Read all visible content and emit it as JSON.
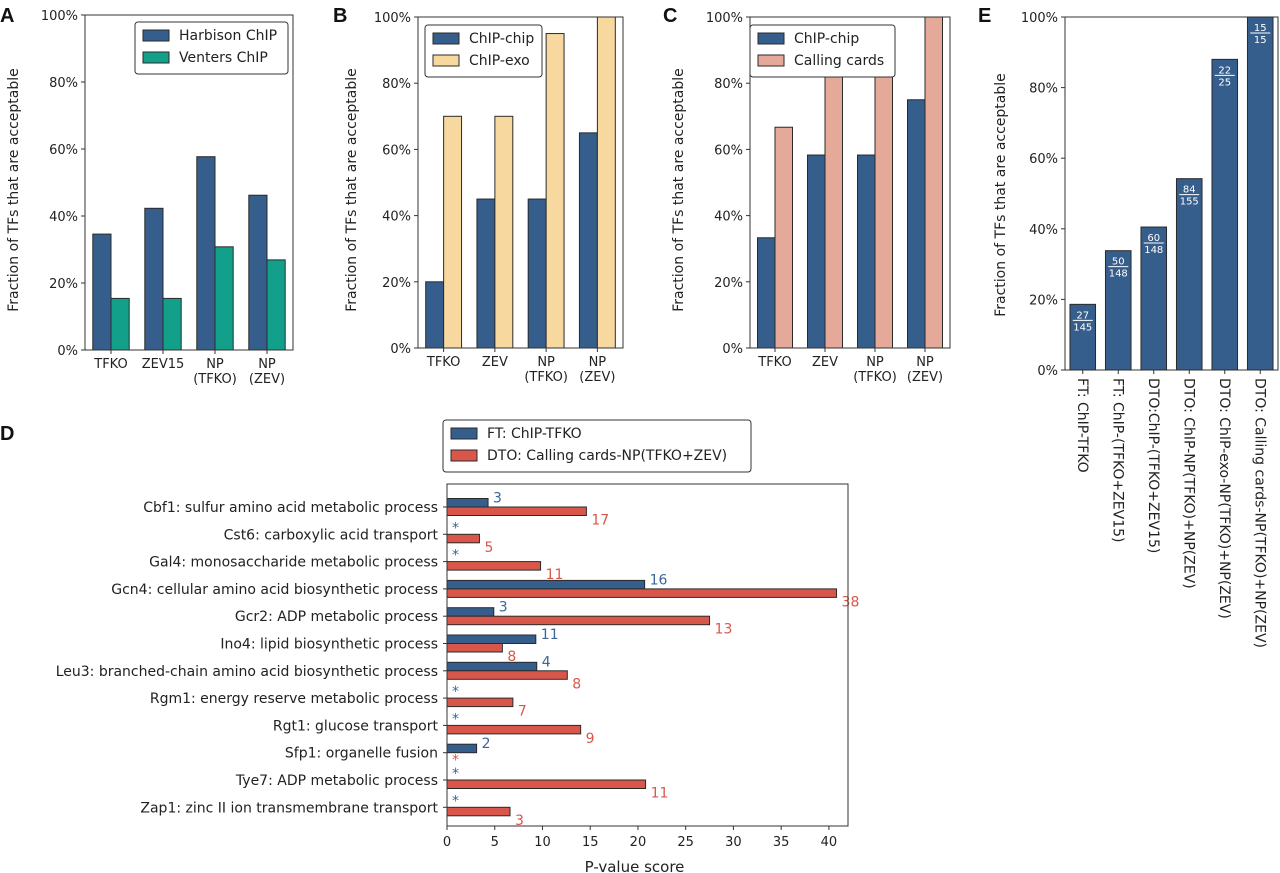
{
  "colors": {
    "navy": "#355e8c",
    "teal": "#13a08a",
    "wheat": "#f7d9a0",
    "salmon": "#e4a998",
    "red": "#d9574a",
    "blue_text": "#3a6698",
    "red_text": "#d9574a"
  },
  "chart_data": [
    {
      "panel": "A",
      "type": "bar",
      "ylabel": "Fraction of TFs that are acceptable",
      "ylim": [
        0,
        100
      ],
      "yticks": [
        "0%",
        "20%",
        "40%",
        "60%",
        "80%",
        "100%"
      ],
      "categories": [
        "TFKO",
        "ZEV15",
        "NP\n(TFKO)",
        "NP\n(ZEV)"
      ],
      "series": [
        {
          "name": "Harbison ChIP",
          "color": "navy",
          "values": [
            34.6,
            42.3,
            57.7,
            46.2
          ]
        },
        {
          "name": "Venters ChIP",
          "color": "teal",
          "values": [
            15.4,
            15.4,
            30.8,
            26.9
          ]
        }
      ],
      "legend": "top-right"
    },
    {
      "panel": "B",
      "type": "bar",
      "ylabel": "Fraction of TFs that are acceptable",
      "ylim": [
        0,
        100
      ],
      "yticks": [
        "0%",
        "20%",
        "40%",
        "60%",
        "80%",
        "100%"
      ],
      "categories": [
        "TFKO",
        "ZEV",
        "NP\n(TFKO)",
        "NP\n(ZEV)"
      ],
      "series": [
        {
          "name": "ChIP-chip",
          "color": "navy",
          "values": [
            20,
            45,
            45,
            65
          ]
        },
        {
          "name": "ChIP-exo",
          "color": "wheat",
          "values": [
            70,
            70,
            95,
            100
          ]
        }
      ],
      "legend": "top-left"
    },
    {
      "panel": "C",
      "type": "bar",
      "ylabel": "Fraction of TFs that are acceptable",
      "ylim": [
        0,
        100
      ],
      "yticks": [
        "0%",
        "20%",
        "40%",
        "60%",
        "80%",
        "100%"
      ],
      "categories": [
        "TFKO",
        "ZEV",
        "NP\n(TFKO)",
        "NP\n(ZEV)"
      ],
      "series": [
        {
          "name": "ChIP-chip",
          "color": "navy",
          "values": [
            33.3,
            58.3,
            58.3,
            75
          ]
        },
        {
          "name": "Calling cards",
          "color": "salmon",
          "values": [
            66.7,
            83.3,
            83.3,
            100
          ]
        }
      ],
      "legend": "top-left"
    },
    {
      "panel": "E",
      "type": "bar",
      "ylabel": "Fraction of TFs that are acceptable",
      "ylim": [
        0,
        100
      ],
      "yticks": [
        "0%",
        "20%",
        "40%",
        "60%",
        "80%",
        "100%"
      ],
      "categories": [
        "FT: ChIP-TFKO",
        "FT: ChIP-(TFKO+ZEV15)",
        "DTO:ChIP-(TFKO+ZEV15)",
        "DTO: ChIP-NP(TFKO)+NP(ZEV)",
        "DTO: ChIP-exo-NP(TFKO)+NP(ZEV)",
        "DTO: Calling cards-NP(TFKO)+NP(ZEV)"
      ],
      "values": [
        18.6,
        33.8,
        40.5,
        54.2,
        88.0,
        100
      ],
      "fractions": [
        {
          "num": "27",
          "den": "145"
        },
        {
          "num": "50",
          "den": "148"
        },
        {
          "num": "60",
          "den": "148"
        },
        {
          "num": "84",
          "den": "155"
        },
        {
          "num": "22",
          "den": "25"
        },
        {
          "num": "15",
          "den": "15"
        }
      ]
    },
    {
      "panel": "D",
      "type": "bar",
      "orientation": "horizontal",
      "xlabel": "P-value score",
      "xlim": [
        0,
        42
      ],
      "xticks": [
        "0",
        "5",
        "10",
        "15",
        "20",
        "25",
        "30",
        "35",
        "40"
      ],
      "categories": [
        "Cbf1: sulfur amino acid metabolic process",
        "Cst6: carboxylic acid transport",
        "Gal4: monosaccharide metabolic process",
        "Gcn4: cellular amino acid biosynthetic process",
        "Gcr2: ADP metabolic process",
        "Ino4: lipid biosynthetic process",
        "Leu3: branched-chain amino acid biosynthetic process",
        "Rgm1: energy reserve metabolic process",
        "Rgt1: glucose transport",
        "Sfp1: organelle fusion",
        "Tye7: ADP metabolic process",
        "Zap1: zinc II ion transmembrane transport"
      ],
      "series": [
        {
          "name": "FT: ChIP-TFKO",
          "color": "navy",
          "values": [
            4.3,
            0,
            0,
            20.7,
            4.9,
            9.3,
            9.4,
            0,
            0,
            3.1,
            0,
            0
          ],
          "labels": [
            "3",
            "*",
            "*",
            "16",
            "3",
            "11",
            "4",
            "*",
            "*",
            "2",
            "*",
            "*"
          ]
        },
        {
          "name": "DTO: Calling cards-NP(TFKO+ZEV)",
          "color": "red",
          "values": [
            14.6,
            3.4,
            9.8,
            40.8,
            27.5,
            5.8,
            12.6,
            6.9,
            14.0,
            0,
            20.8,
            6.6
          ],
          "labels": [
            "17",
            "5",
            "11",
            "38",
            "13",
            "8",
            "8",
            "7",
            "9",
            "*",
            "11",
            "3"
          ]
        }
      ],
      "legend": "top"
    }
  ],
  "panel_labels": [
    "A",
    "B",
    "C",
    "D",
    "E"
  ]
}
